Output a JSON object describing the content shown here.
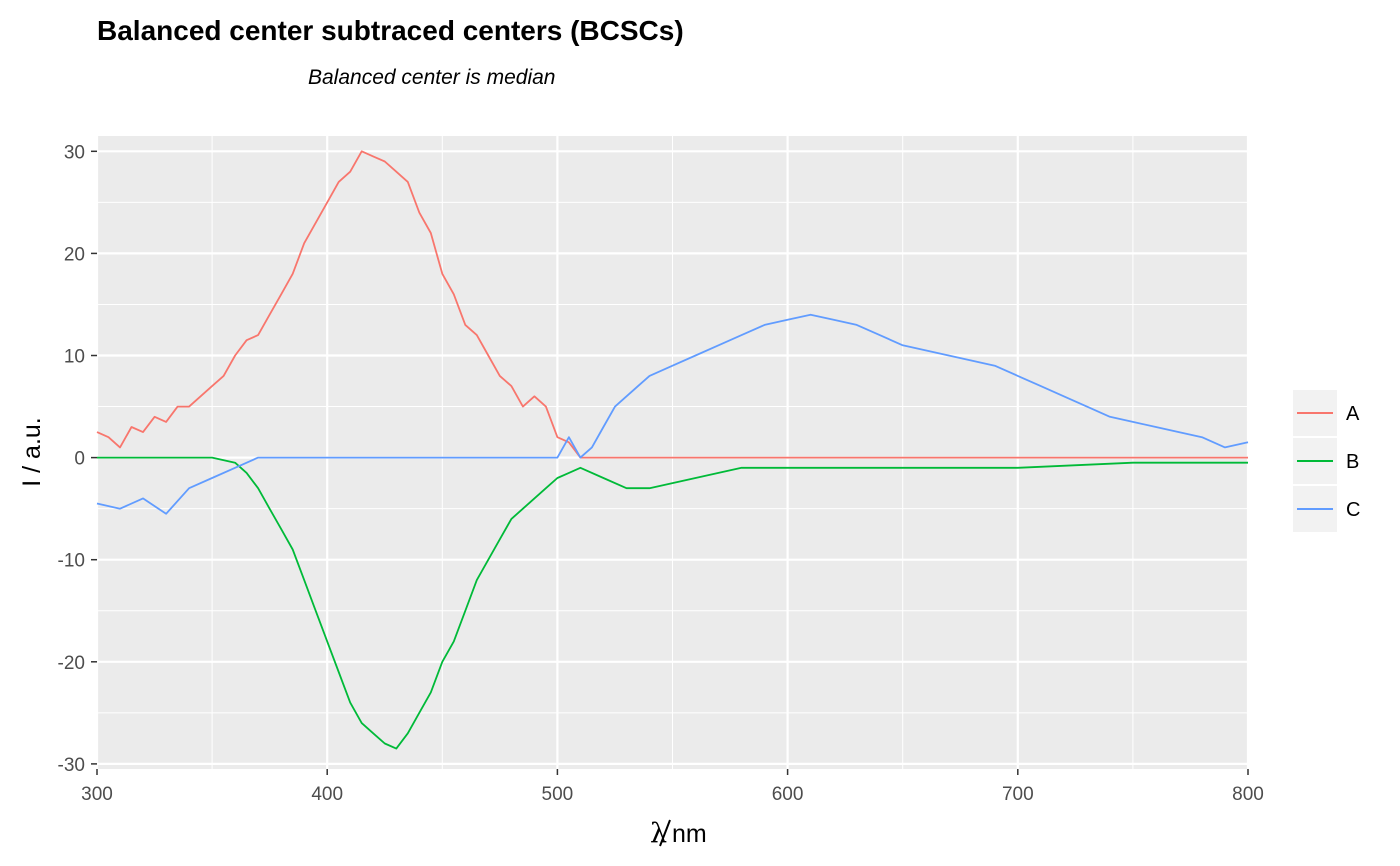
{
  "chart_data": {
    "type": "line",
    "title": "Balanced center subtraced centers (BCSCs)",
    "subtitle": "Balanced center is median",
    "xlabel_symbol": "λ",
    "xlabel_unit": "nm",
    "ylabel": "I / a.u.",
    "xlim": [
      300,
      800
    ],
    "ylim": [
      -30.5,
      31.5
    ],
    "x_ticks": [
      300,
      400,
      500,
      600,
      700,
      800
    ],
    "y_ticks": [
      -30,
      -20,
      -10,
      0,
      10,
      20,
      30
    ],
    "grid": true,
    "legend_position": "right",
    "colors": {
      "A": "#F8766D",
      "B": "#00BA38",
      "C": "#619CFF"
    },
    "series": [
      {
        "name": "A",
        "x": [
          300,
          305,
          310,
          315,
          320,
          325,
          330,
          335,
          340,
          345,
          350,
          355,
          360,
          365,
          370,
          375,
          380,
          385,
          390,
          395,
          400,
          405,
          410,
          415,
          420,
          425,
          430,
          435,
          440,
          445,
          450,
          455,
          460,
          465,
          470,
          475,
          480,
          485,
          490,
          495,
          500,
          505,
          510,
          515,
          520,
          560,
          600,
          640,
          680,
          720,
          760,
          800
        ],
        "values": [
          2.5,
          2,
          1,
          3,
          2.5,
          4,
          3.5,
          5,
          5,
          6,
          7,
          8,
          10,
          11.5,
          12,
          14,
          16,
          18,
          21,
          23,
          25,
          27,
          28,
          30,
          29.5,
          29,
          28,
          27,
          24,
          22,
          18,
          16,
          13,
          12,
          10,
          8,
          7,
          5,
          6,
          5,
          2,
          1.5,
          0,
          0,
          0,
          0,
          0,
          0,
          0,
          0,
          0,
          0
        ]
      },
      {
        "name": "B",
        "x": [
          300,
          350,
          360,
          365,
          370,
          375,
          380,
          385,
          390,
          395,
          400,
          405,
          410,
          415,
          420,
          425,
          430,
          435,
          440,
          445,
          450,
          455,
          460,
          465,
          470,
          475,
          480,
          485,
          490,
          495,
          500,
          505,
          510,
          520,
          530,
          540,
          550,
          560,
          570,
          580,
          590,
          600,
          650,
          700,
          750,
          800
        ],
        "values": [
          0,
          0,
          -0.5,
          -1.5,
          -3,
          -5,
          -7,
          -9,
          -12,
          -15,
          -18,
          -21,
          -24,
          -26,
          -27,
          -28,
          -28.5,
          -27,
          -25,
          -23,
          -20,
          -18,
          -15,
          -12,
          -10,
          -8,
          -6,
          -5,
          -4,
          -3,
          -2,
          -1.5,
          -1,
          -2,
          -3,
          -3,
          -2.5,
          -2,
          -1.5,
          -1,
          -1,
          -1,
          -1,
          -1,
          -0.5,
          -0.5
        ]
      },
      {
        "name": "C",
        "x": [
          300,
          310,
          320,
          330,
          340,
          350,
          360,
          370,
          500,
          505,
          510,
          515,
          520,
          525,
          530,
          540,
          550,
          560,
          570,
          580,
          590,
          600,
          610,
          620,
          630,
          640,
          650,
          660,
          670,
          680,
          690,
          700,
          710,
          720,
          730,
          740,
          750,
          760,
          770,
          780,
          790,
          800
        ],
        "values": [
          -4.5,
          -5,
          -4,
          -5.5,
          -3,
          -2,
          -1,
          0,
          0,
          2,
          0,
          1,
          3,
          5,
          6,
          8,
          9,
          10,
          11,
          12,
          13,
          13.5,
          14,
          13.5,
          13,
          12,
          11,
          10.5,
          10,
          9.5,
          9,
          8,
          7,
          6,
          5,
          4,
          3.5,
          3,
          2.5,
          2,
          1,
          1.5
        ]
      }
    ]
  }
}
